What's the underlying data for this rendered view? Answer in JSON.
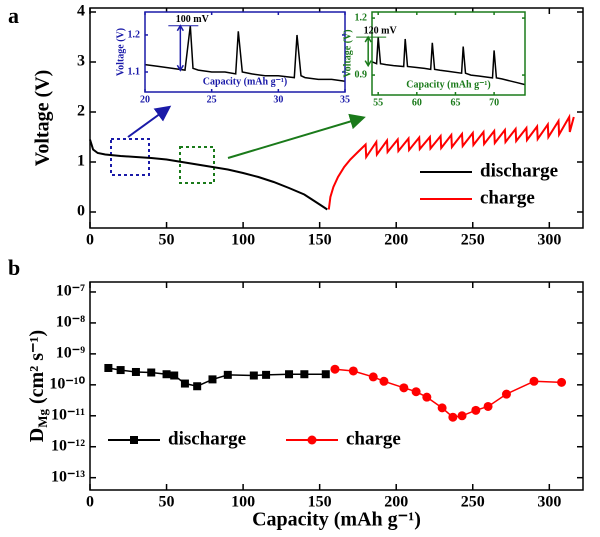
{
  "chart_data": [
    {
      "type": "line",
      "panel": "a",
      "y_label": "Voltage (V)",
      "xlim": [
        0,
        322
      ],
      "xticks": [
        0,
        50,
        100,
        150,
        200,
        250,
        300
      ],
      "ylim": [
        -0.32,
        4.08
      ],
      "yticks": [
        0,
        1,
        2,
        3,
        4
      ],
      "legend": "lower right",
      "series": [
        {
          "name": "discharge",
          "color": "#000000",
          "x": [
            0,
            2,
            5,
            10,
            20,
            30,
            40,
            50,
            60,
            70,
            80,
            90,
            100,
            110,
            120,
            130,
            140,
            145,
            150,
            155
          ],
          "values": [
            1.45,
            1.25,
            1.18,
            1.15,
            1.12,
            1.1,
            1.08,
            1.05,
            1.0,
            0.95,
            0.9,
            0.85,
            0.78,
            0.7,
            0.6,
            0.48,
            0.35,
            0.25,
            0.15,
            0.05
          ]
        },
        {
          "name": "charge",
          "color": "#ff0000",
          "x": [
            156,
            157,
            159,
            162,
            166,
            170,
            175,
            180,
            180.4,
            187,
            187.4,
            194,
            194.4,
            201,
            201.4,
            208,
            208.4,
            215,
            215.4,
            222,
            222.4,
            229,
            229.4,
            236,
            236.4,
            243,
            243.4,
            250,
            250.4,
            257,
            257.4,
            264,
            264.4,
            271,
            271.4,
            278,
            278.4,
            285,
            285.4,
            292,
            292.4,
            299,
            299.4,
            306,
            306.4,
            313,
            313.4,
            316
          ],
          "values": [
            0.05,
            0.3,
            0.5,
            0.7,
            0.9,
            1.05,
            1.2,
            1.35,
            1.1,
            1.4,
            1.15,
            1.43,
            1.2,
            1.45,
            1.22,
            1.47,
            1.24,
            1.49,
            1.26,
            1.5,
            1.27,
            1.52,
            1.28,
            1.54,
            1.3,
            1.56,
            1.32,
            1.58,
            1.34,
            1.6,
            1.36,
            1.62,
            1.38,
            1.64,
            1.4,
            1.66,
            1.42,
            1.68,
            1.44,
            1.71,
            1.46,
            1.75,
            1.5,
            1.82,
            1.55,
            1.9,
            1.6,
            1.9
          ]
        }
      ]
    },
    {
      "type": "line",
      "axis_color": "#1a1aa8",
      "annotation": "100 mV",
      "x_label": "Capacity (mAh g⁻¹)",
      "y_label": "Voltage (V)",
      "xlim": [
        20,
        35
      ],
      "xticks": [
        20,
        25,
        30,
        35
      ],
      "ylim": [
        1.046,
        1.262
      ],
      "yticks": [
        1.1,
        1.2
      ],
      "series": [
        {
          "color": "#000000",
          "x": [
            20,
            21,
            22,
            23,
            23.4,
            23.6,
            24,
            25,
            26,
            26.8,
            27,
            27.3,
            28,
            29,
            30,
            31.2,
            31.4,
            31.7,
            32,
            33,
            34,
            35
          ],
          "values": [
            1.12,
            1.115,
            1.11,
            1.105,
            1.225,
            1.11,
            1.105,
            1.1,
            1.1,
            1.095,
            1.21,
            1.1,
            1.095,
            1.09,
            1.09,
            1.085,
            1.2,
            1.09,
            1.085,
            1.08,
            1.08,
            1.075
          ]
        }
      ]
    },
    {
      "type": "line",
      "axis_color": "#1a7a1a",
      "annotation": "120 mV",
      "x_label": "Capacity (mAh g⁻¹)",
      "y_label": "Voltage (V)",
      "xlim": [
        54.2,
        74.0
      ],
      "xticks": [
        55,
        60,
        65,
        70
      ],
      "ylim": [
        0.795,
        1.232
      ],
      "yticks": [
        0.9,
        1.2
      ],
      "series": [
        {
          "color": "#000000",
          "x": [
            54.2,
            54.8,
            55,
            55.3,
            56,
            57,
            58.3,
            58.5,
            58.8,
            60,
            61,
            61.8,
            62,
            62.3,
            63,
            64,
            65.8,
            66,
            66.3,
            67,
            68,
            69.8,
            70,
            70.3,
            71,
            72,
            73,
            74
          ],
          "values": [
            0.97,
            0.96,
            1.1,
            0.96,
            0.955,
            0.95,
            0.945,
            1.09,
            0.945,
            0.94,
            0.935,
            0.93,
            1.07,
            0.93,
            0.925,
            0.92,
            0.91,
            1.05,
            0.91,
            0.9,
            0.895,
            0.885,
            1.03,
            0.885,
            0.88,
            0.87,
            0.86,
            0.85
          ]
        }
      ]
    },
    {
      "type": "line",
      "panel": "b",
      "log_y": true,
      "x_label": "Capacity (mAh g⁻¹)",
      "y_label_parts": [
        "D",
        "Mg",
        " (cm² s⁻¹)"
      ],
      "xlim": [
        0,
        322
      ],
      "xticks": [
        0,
        50,
        100,
        150,
        200,
        250,
        300
      ],
      "ylim": [
        4e-14,
        2.1e-07
      ],
      "yticks": [
        {
          "value": 1e-13,
          "label": "10⁻¹³"
        },
        {
          "value": 1e-12,
          "label": "10⁻¹²"
        },
        {
          "value": 1e-11,
          "label": "10⁻¹¹"
        },
        {
          "value": 1e-10,
          "label": "10⁻¹⁰"
        },
        {
          "value": 1e-09,
          "label": "10⁻⁹"
        },
        {
          "value": 1e-08,
          "label": "10⁻⁸"
        },
        {
          "value": 1e-07,
          "label": "10⁻⁷"
        }
      ],
      "legend": "lower left",
      "series": [
        {
          "name": "discharge",
          "color": "#000000",
          "marker": "square",
          "x": [
            12,
            20,
            30,
            40,
            50,
            55,
            62,
            70,
            80,
            90,
            107,
            115,
            130,
            140,
            154
          ],
          "values": [
            3.5e-10,
            3e-10,
            2.6e-10,
            2.5e-10,
            2.2e-10,
            2e-10,
            1.1e-10,
            9e-11,
            1.5e-10,
            2.1e-10,
            2e-10,
            2.1e-10,
            2.2e-10,
            2.2e-10,
            2.2e-10
          ]
        },
        {
          "name": "charge",
          "color": "#ff0000",
          "marker": "circle",
          "x": [
            160,
            172,
            185,
            192,
            205,
            213,
            220,
            230,
            237,
            243,
            252,
            260,
            272,
            290,
            308
          ],
          "values": [
            3.2e-10,
            2.8e-10,
            1.8e-10,
            1.3e-10,
            8e-11,
            6e-11,
            4e-11,
            1.8e-11,
            9e-12,
            1e-11,
            1.5e-11,
            2e-11,
            5e-11,
            1.3e-10,
            1.2e-10
          ]
        }
      ]
    }
  ]
}
